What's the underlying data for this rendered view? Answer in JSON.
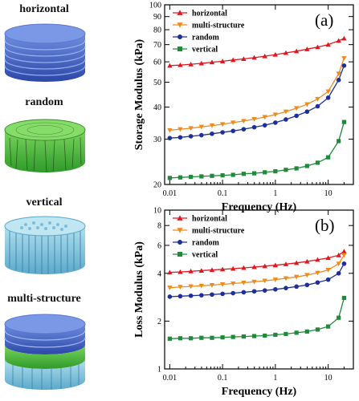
{
  "left_panel": {
    "labels": [
      "horizontal",
      "random",
      "vertical",
      "multi-structure"
    ]
  },
  "colors": {
    "horizontal": "#e0171f",
    "multi-structure": "#f08a1c",
    "random": "#1e2f9a",
    "vertical": "#1e8a3a",
    "disk_blue": "#3f63c8",
    "disk_green": "#4fbf3c",
    "disk_cyan": "#7fc6dc"
  },
  "chart_data": [
    {
      "type": "line",
      "panel_label": "(a)",
      "xlabel": "Frequency (Hz)",
      "ylabel": "Storage Modulus (kPa)",
      "xscale": "log",
      "yscale": "log",
      "xlim": [
        0.008,
        30
      ],
      "ylim": [
        20,
        100
      ],
      "xticks": [
        0.01,
        0.1,
        1,
        10
      ],
      "xtick_labels": [
        "0.01",
        "0.1",
        "1",
        "10"
      ],
      "yticks": [
        20,
        30,
        40,
        50,
        60,
        70,
        80,
        90,
        100
      ],
      "ytick_labels": [
        "20",
        "30",
        "40",
        "50",
        "60",
        "70",
        "80",
        "90",
        "100"
      ],
      "legend_position": "top-left",
      "series": [
        {
          "name": "horizontal",
          "marker": "triangle-up",
          "x": [
            0.01,
            0.0158,
            0.0251,
            0.0398,
            0.0631,
            0.1,
            0.158,
            0.251,
            0.398,
            0.631,
            1,
            1.58,
            2.51,
            3.98,
            6.31,
            10,
            15.8,
            20
          ],
          "y": [
            58,
            58.3,
            58.7,
            59.2,
            59.8,
            60.3,
            61,
            61.6,
            62.3,
            63.1,
            64,
            65,
            66,
            67.2,
            68.5,
            70,
            72.5,
            74
          ]
        },
        {
          "name": "multi-structure",
          "marker": "triangle-down",
          "x": [
            0.01,
            0.0158,
            0.0251,
            0.0398,
            0.0631,
            0.1,
            0.158,
            0.251,
            0.398,
            0.631,
            1,
            1.58,
            2.51,
            3.98,
            6.31,
            10,
            15.8,
            20
          ],
          "y": [
            32.5,
            32.8,
            33.1,
            33.5,
            33.9,
            34.3,
            34.8,
            35.3,
            35.9,
            36.6,
            37.4,
            38.4,
            39.6,
            41,
            43,
            46,
            54,
            62
          ]
        },
        {
          "name": "random",
          "marker": "circle",
          "x": [
            0.01,
            0.0158,
            0.0251,
            0.0398,
            0.0631,
            0.1,
            0.158,
            0.251,
            0.398,
            0.631,
            1,
            1.58,
            2.51,
            3.98,
            6.31,
            10,
            15.8,
            20
          ],
          "y": [
            30.3,
            30.5,
            30.8,
            31.1,
            31.5,
            31.9,
            32.3,
            32.8,
            33.4,
            34,
            34.8,
            35.8,
            37,
            38.4,
            40.3,
            43.5,
            51,
            58
          ]
        },
        {
          "name": "vertical",
          "marker": "square",
          "x": [
            0.01,
            0.0158,
            0.0251,
            0.0398,
            0.0631,
            0.1,
            0.158,
            0.251,
            0.398,
            0.631,
            1,
            1.58,
            2.51,
            3.98,
            6.31,
            10,
            15.8,
            20
          ],
          "y": [
            21.2,
            21.3,
            21.4,
            21.5,
            21.6,
            21.7,
            21.8,
            22,
            22.1,
            22.3,
            22.5,
            22.8,
            23.1,
            23.6,
            24.3,
            25.5,
            29.5,
            35
          ]
        }
      ]
    },
    {
      "type": "line",
      "panel_label": "(b)",
      "xlabel": "Frequency (Hz)",
      "ylabel": "Loss Modulus (kPa)",
      "xscale": "log",
      "yscale": "log",
      "xlim": [
        0.008,
        30
      ],
      "ylim": [
        1,
        10
      ],
      "xticks": [
        0.01,
        0.1,
        1,
        10
      ],
      "xtick_labels": [
        "0.01",
        "0.1",
        "1",
        "10"
      ],
      "yticks": [
        1,
        2,
        4,
        6,
        8,
        10
      ],
      "ytick_labels": [
        "1",
        "2",
        "4",
        "6",
        "8",
        "10"
      ],
      "legend_position": "top-left",
      "series": [
        {
          "name": "horizontal",
          "marker": "triangle-up",
          "x": [
            0.01,
            0.0158,
            0.0251,
            0.0398,
            0.0631,
            0.1,
            0.158,
            0.251,
            0.398,
            0.631,
            1,
            1.58,
            2.51,
            3.98,
            6.31,
            10,
            15.8,
            20
          ],
          "y": [
            4.05,
            4.08,
            4.12,
            4.16,
            4.2,
            4.24,
            4.28,
            4.33,
            4.38,
            4.44,
            4.5,
            4.57,
            4.65,
            4.75,
            4.87,
            5,
            5.2,
            5.5
          ]
        },
        {
          "name": "multi-structure",
          "marker": "triangle-down",
          "x": [
            0.01,
            0.0158,
            0.0251,
            0.0398,
            0.0631,
            0.1,
            0.158,
            0.251,
            0.398,
            0.631,
            1,
            1.58,
            2.51,
            3.98,
            6.31,
            10,
            15.8,
            20
          ],
          "y": [
            3.25,
            3.28,
            3.31,
            3.34,
            3.37,
            3.41,
            3.45,
            3.49,
            3.54,
            3.59,
            3.65,
            3.72,
            3.8,
            3.9,
            4.03,
            4.2,
            4.6,
            5.2
          ]
        },
        {
          "name": "random",
          "marker": "circle",
          "x": [
            0.01,
            0.0158,
            0.0251,
            0.0398,
            0.0631,
            0.1,
            0.158,
            0.251,
            0.398,
            0.631,
            1,
            1.58,
            2.51,
            3.98,
            6.31,
            10,
            15.8,
            20
          ],
          "y": [
            2.85,
            2.87,
            2.89,
            2.91,
            2.94,
            2.97,
            3,
            3.04,
            3.08,
            3.12,
            3.17,
            3.23,
            3.3,
            3.38,
            3.5,
            3.65,
            4,
            4.6
          ]
        },
        {
          "name": "vertical",
          "marker": "square",
          "x": [
            0.01,
            0.0158,
            0.0251,
            0.0398,
            0.0631,
            0.1,
            0.158,
            0.251,
            0.398,
            0.631,
            1,
            1.58,
            2.51,
            3.98,
            6.31,
            10,
            15.8,
            20
          ],
          "y": [
            1.55,
            1.56,
            1.56,
            1.57,
            1.57,
            1.58,
            1.59,
            1.6,
            1.61,
            1.62,
            1.64,
            1.66,
            1.69,
            1.72,
            1.77,
            1.85,
            2.1,
            2.8
          ]
        }
      ]
    }
  ]
}
